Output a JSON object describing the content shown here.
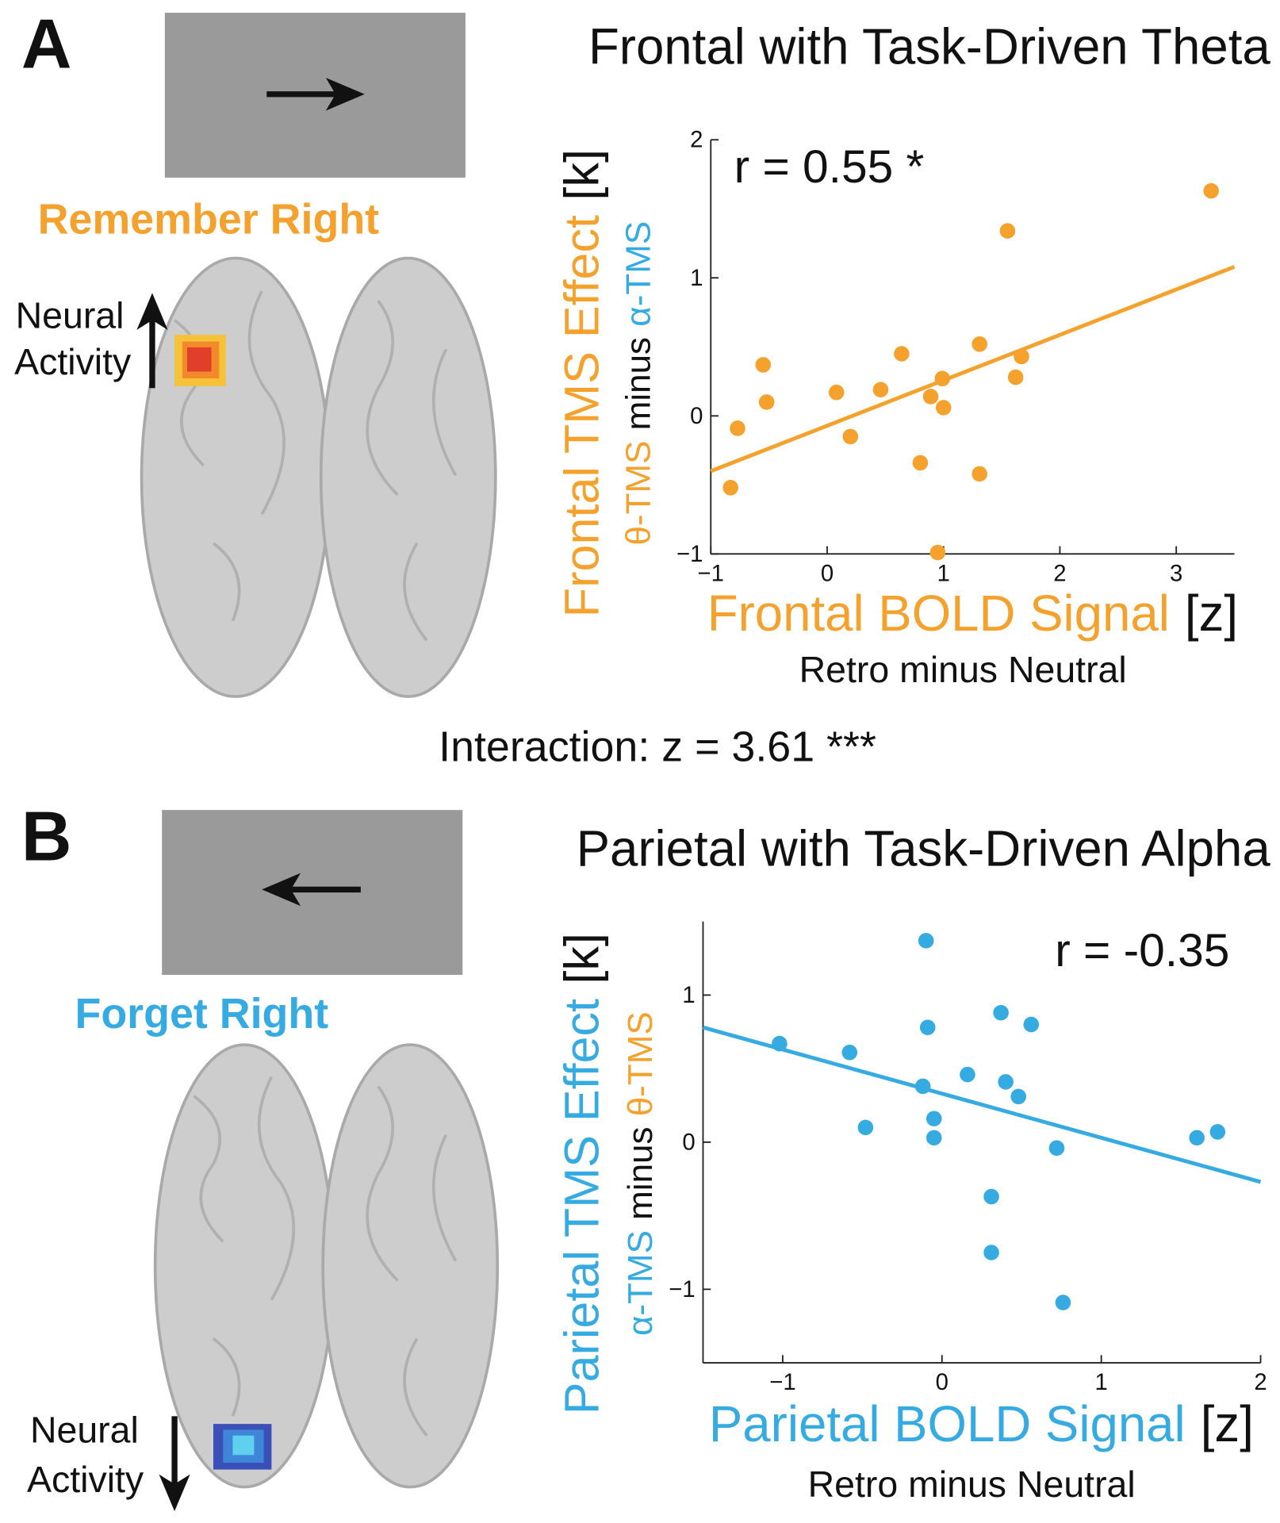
{
  "panels": [
    {
      "label": "A",
      "cue_label": "Remember Right",
      "cue_color": "#f4a22d",
      "neural_activity": [
        "Neural",
        "Activity"
      ]
    },
    {
      "label": "B",
      "cue_label": "Forget Right",
      "cue_color": "#36abe1",
      "neural_activity": [
        "Neural",
        "Activity"
      ]
    }
  ],
  "interaction": "Interaction: z = 3.61 ***",
  "chart_data": [
    {
      "type": "scatter",
      "title": "Frontal with Task-Driven Theta",
      "annotation": "r = 0.55 *",
      "color": "#f4a22d",
      "xlabel": [
        {
          "text": "Frontal BOLD Signal",
          "color": "#f4a22d"
        },
        {
          "text": "[z]",
          "color": "#111111"
        }
      ],
      "xlabel2": "Retro minus Neutral",
      "ylabel": [
        {
          "text": "Frontal TMS Effect",
          "color": "#f4a22d"
        },
        {
          "text": "[k]",
          "color": "#111111"
        }
      ],
      "ylabel2": [
        {
          "text": "θ-TMS",
          "color": "#f4a22d"
        },
        {
          "text": "minus",
          "color": "#111111"
        },
        {
          "text": "α-TMS",
          "color": "#36abe1"
        }
      ],
      "x": [
        -0.83,
        -0.77,
        -0.55,
        -0.52,
        0.08,
        0.2,
        0.46,
        0.64,
        0.8,
        0.89,
        0.99,
        1.0,
        0.95,
        1.31,
        1.31,
        1.55,
        1.62,
        1.67,
        3.3
      ],
      "values": [
        -0.52,
        -0.09,
        0.37,
        0.1,
        0.17,
        -0.15,
        0.19,
        0.45,
        -0.34,
        0.14,
        0.27,
        0.06,
        -0.99,
        0.52,
        -0.42,
        1.34,
        0.28,
        0.43,
        1.63
      ],
      "fit": {
        "x": [
          -1,
          3.5
        ],
        "values": [
          -0.4,
          1.08
        ]
      },
      "xlim": [
        -1,
        3.5
      ],
      "ylim": [
        -1,
        2
      ],
      "xticks": [
        {
          "value": -1,
          "label": "−1"
        },
        0,
        1,
        2,
        3
      ],
      "yticks": [
        {
          "value": -1,
          "label": "−1"
        },
        0,
        1,
        2
      ]
    },
    {
      "type": "scatter",
      "title": "Parietal with Task-Driven Alpha",
      "annotation": "r = -0.35",
      "color": "#36abe1",
      "xlabel": [
        {
          "text": "Parietal BOLD Signal",
          "color": "#36abe1"
        },
        {
          "text": "[z]",
          "color": "#111111"
        }
      ],
      "xlabel2": "Retro minus Neutral",
      "ylabel": [
        {
          "text": "Parietal TMS Effect",
          "color": "#36abe1"
        },
        {
          "text": "[k]",
          "color": "#111111"
        }
      ],
      "ylabel2": [
        {
          "text": "α-TMS",
          "color": "#36abe1"
        },
        {
          "text": "minus",
          "color": "#111111"
        },
        {
          "text": "θ-TMS",
          "color": "#f4a22d"
        }
      ],
      "x": [
        -1.02,
        -0.58,
        -0.48,
        -0.1,
        -0.09,
        -0.12,
        -0.05,
        -0.05,
        0.16,
        0.37,
        0.4,
        0.48,
        0.56,
        0.31,
        0.31,
        0.72,
        0.76,
        1.6,
        1.73
      ],
      "values": [
        0.67,
        0.61,
        0.1,
        1.37,
        0.78,
        0.38,
        0.16,
        0.03,
        0.46,
        0.88,
        0.41,
        0.31,
        0.8,
        -0.37,
        -0.75,
        -0.04,
        -1.09,
        0.03,
        0.07
      ],
      "fit": {
        "x": [
          -1.5,
          2
        ],
        "values": [
          0.78,
          -0.27
        ]
      },
      "xlim": [
        -1.5,
        2
      ],
      "ylim": [
        -1.5,
        1.5
      ],
      "xticks": [
        {
          "value": -1,
          "label": "−1"
        },
        0,
        1,
        2
      ],
      "yticks": [
        {
          "value": -1,
          "label": "−1"
        },
        0,
        1
      ]
    }
  ]
}
